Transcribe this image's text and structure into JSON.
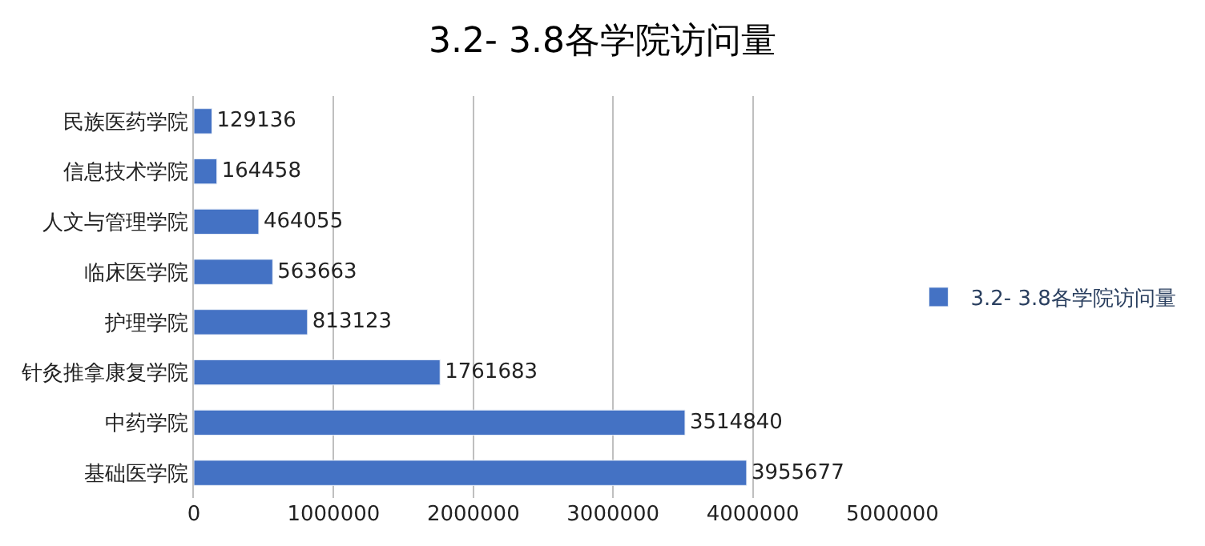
{
  "chart_data": {
    "type": "bar",
    "orientation": "horizontal",
    "title": "3.2- 3.8各学院访问量",
    "categories": [
      "民族医药学院",
      "信息技术学院",
      "人文与管理学院",
      "临床医学院",
      "护理学院",
      "针灸推拿康复学院",
      "中药学院",
      "基础医学院"
    ],
    "series": [
      {
        "name": "3.2- 3.8各学院访问量",
        "color": "#4472c4",
        "values": [
          129136,
          164458,
          464055,
          563663,
          813123,
          1761683,
          3514840,
          3955677
        ]
      }
    ],
    "xlim": [
      0,
      5000000
    ],
    "xticks": [
      0,
      1000000,
      2000000,
      3000000,
      4000000,
      5000000
    ],
    "grid": "x",
    "legend": "right",
    "data_labels": true
  }
}
